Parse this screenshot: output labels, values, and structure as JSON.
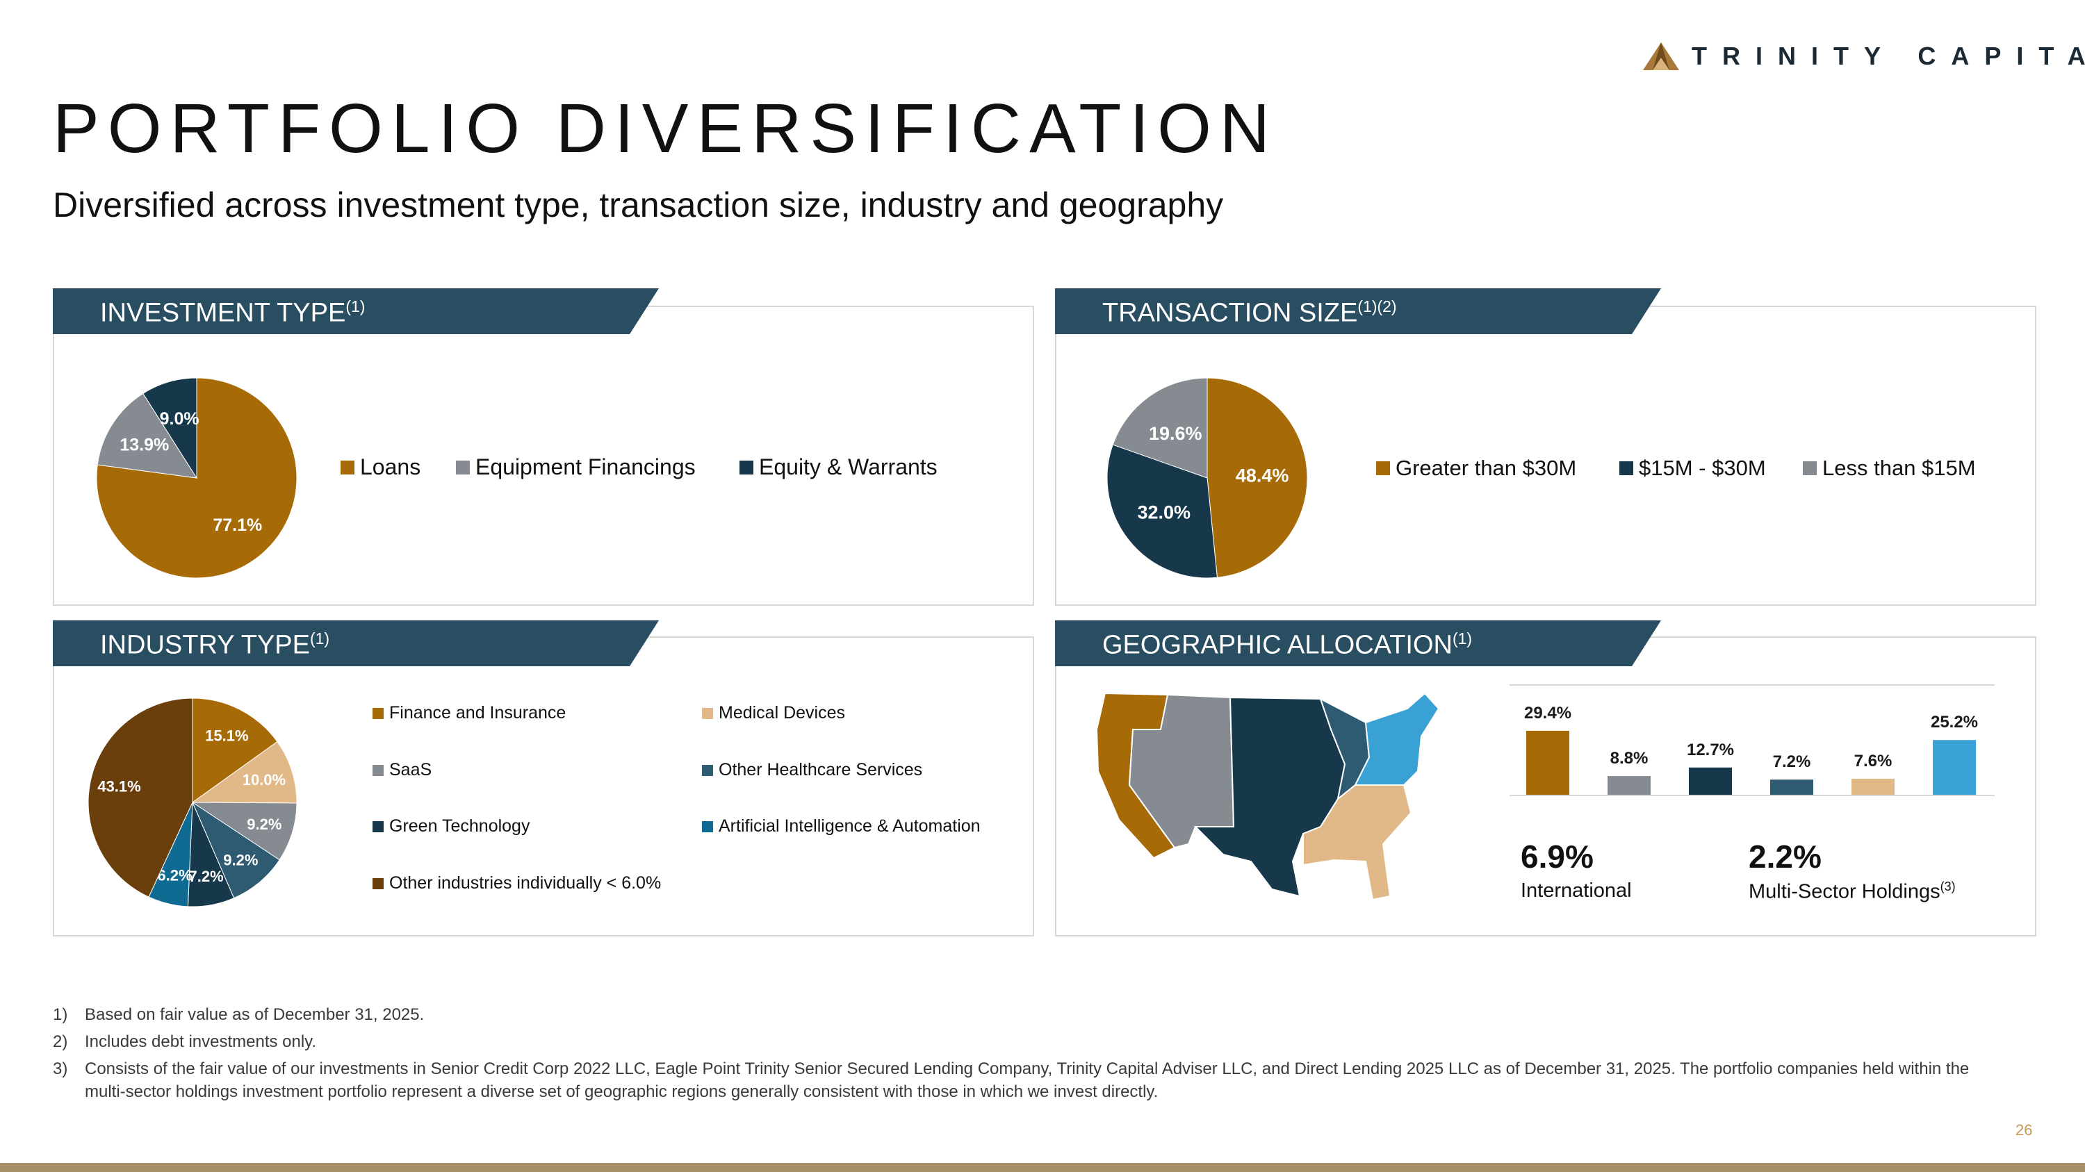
{
  "brand": {
    "name": "TRINITY CAPITAL"
  },
  "page": {
    "title": "PORTFOLIO DIVERSIFICATION",
    "subtitle": "Diversified across investment type, transaction size, industry and geography",
    "page_number": "26"
  },
  "colors": {
    "banner": "#2a4e61",
    "gold": "#a66b07",
    "gray": "#858b90",
    "navy": "#17384b",
    "teal": "#2f5b72",
    "tan": "#e1b887",
    "light_blue": "#3aa1d4",
    "blue": "#0f6b92",
    "brown": "#6b3f0c"
  },
  "chart_data": [
    {
      "type": "pie",
      "title": "INVESTMENT TYPE",
      "title_sup": "(1)",
      "categories": [
        "Loans",
        "Equipment Financings",
        "Equity & Warrants"
      ],
      "values": [
        77.1,
        13.9,
        9.0
      ],
      "labels": [
        "77.1%",
        "13.9%",
        "9.0%"
      ],
      "colors": [
        "#a66b07",
        "#858b90",
        "#17384b"
      ],
      "legend": "right"
    },
    {
      "type": "pie",
      "title": "TRANSACTION SIZE",
      "title_sup": "(1)(2)",
      "categories": [
        "Greater than $30M",
        "$15M - $30M",
        "Less than $15M"
      ],
      "values": [
        48.4,
        32.0,
        19.6
      ],
      "labels": [
        "48.4%",
        "32.0%",
        "19.6%"
      ],
      "colors": [
        "#a66b07",
        "#17384b",
        "#858b90"
      ],
      "legend": "right"
    },
    {
      "type": "pie",
      "title": "INDUSTRY TYPE",
      "title_sup": "(1)",
      "categories": [
        "Finance and Insurance",
        "Medical Devices",
        "SaaS",
        "Other Healthcare Services",
        "Green Technology",
        "Artificial Intelligence & Automation",
        "Other industries individually < 6.0%"
      ],
      "values": [
        15.1,
        10.0,
        9.2,
        9.2,
        7.2,
        6.2,
        43.1
      ],
      "labels": [
        "15.1%",
        "10.0%",
        "9.2%",
        "9.2%",
        "7.2%",
        "6.2%",
        "43.1%"
      ],
      "colors": [
        "#a66b07",
        "#e1b887",
        "#858b90",
        "#2f5b72",
        "#17384b",
        "#0f6b92",
        "#6b3f0c"
      ],
      "legend": "right"
    },
    {
      "type": "bar",
      "title": "GEOGRAPHIC ALLOCATION",
      "title_sup": "(1)",
      "categories": [
        "",
        "",
        "",
        "",
        "",
        ""
      ],
      "values": [
        29.4,
        8.8,
        12.7,
        7.2,
        7.6,
        25.2
      ],
      "labels": [
        "29.4%",
        "8.8%",
        "12.7%",
        "7.2%",
        "7.6%",
        "25.2%"
      ],
      "colors": [
        "#a66b07",
        "#858b90",
        "#17384b",
        "#2f5b72",
        "#e1b887",
        "#3aa1d4"
      ],
      "ylim": [
        0,
        30
      ]
    }
  ],
  "geo_stats": [
    {
      "value": "6.9%",
      "label": "International",
      "sup": ""
    },
    {
      "value": "2.2%",
      "label": "Multi-Sector Holdings",
      "sup": "(3)"
    }
  ],
  "footnotes": [
    {
      "num": "1)",
      "text": "Based on fair value as of December 31, 2025."
    },
    {
      "num": "2)",
      "text": "Includes debt investments only."
    },
    {
      "num": "3)",
      "text": "Consists of the fair value of our investments in Senior Credit Corp 2022 LLC, Eagle Point Trinity Senior Secured Lending Company, Trinity Capital Adviser LLC, and Direct Lending 2025 LLC as of December 31, 2025. The portfolio companies held within the multi-sector holdings investment portfolio represent a diverse set of geographic regions generally consistent with those in which we invest directly."
    }
  ]
}
